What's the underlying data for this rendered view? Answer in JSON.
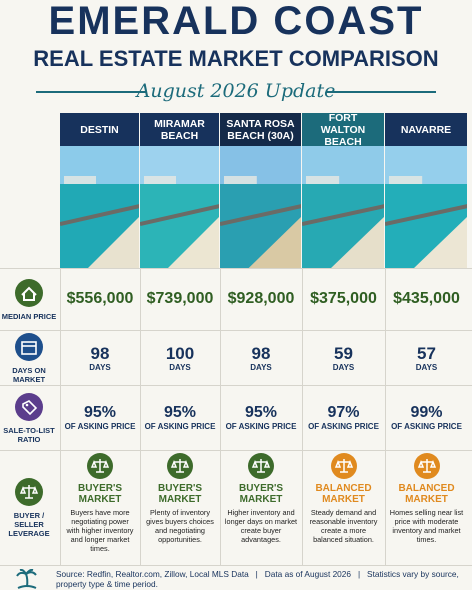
{
  "header": {
    "title": "EMERALD COAST",
    "subtitle": "REAL ESTATE MARKET COMPARISON",
    "update": "August 2026 Update"
  },
  "row_labels": [
    "MEDIAN PRICE",
    "DAYS ON MARKET",
    "SALE-TO-LIST RATIO",
    "BUYER / SELLER LEVERAGE"
  ],
  "columns": [
    {
      "name": "DESTIN",
      "header_color": "#17325c",
      "price": "$556,000",
      "days": "98",
      "days_unit": "DAYS",
      "ratio": "95%",
      "ratio_unit": "OF ASKING PRICE",
      "leverage": [
        "BUYER'S",
        "MARKET"
      ],
      "leverage_color": "#3d6b2b",
      "description": "Buyers have more negotiating power with higher inventory and longer market times."
    },
    {
      "name": "MIRAMAR BEACH",
      "header_color": "#17325c",
      "price": "$739,000",
      "days": "100",
      "days_unit": "DAYS",
      "ratio": "95%",
      "ratio_unit": "OF ASKING PRICE",
      "leverage": [
        "BUYER'S",
        "MARKET"
      ],
      "leverage_color": "#3d6b2b",
      "description": "Plenty of inventory gives buyers choices and negotiating opportunities."
    },
    {
      "name": "SANTA ROSA BEACH (30A)",
      "header_color": "#142a49",
      "price": "$928,000",
      "days": "98",
      "days_unit": "DAYS",
      "ratio": "95%",
      "ratio_unit": "OF ASKING PRICE",
      "leverage": [
        "BUYER'S",
        "MARKET"
      ],
      "leverage_color": "#3d6b2b",
      "description": "Higher inventory and longer days on market create buyer advantages."
    },
    {
      "name": "FORT WALTON BEACH",
      "header_color": "#1c6b7b",
      "price": "$375,000",
      "days": "59",
      "days_unit": "DAYS",
      "ratio": "97%",
      "ratio_unit": "OF ASKING PRICE",
      "leverage": [
        "BALANCED",
        "MARKET"
      ],
      "leverage_color": "#e08a1f",
      "description": "Steady demand and reasonable inventory create a more balanced situation."
    },
    {
      "name": "NAVARRE",
      "header_color": "#17325c",
      "price": "$435,000",
      "days": "57",
      "days_unit": "DAYS",
      "ratio": "99%",
      "ratio_unit": "OF ASKING PRICE",
      "leverage": [
        "BALANCED",
        "MARKET"
      ],
      "leverage_color": "#e08a1f",
      "description": "Homes selling near list price with moderate inventory and market times."
    }
  ],
  "footer": {
    "source": "Source: Redfin, Realtor.com, Zillow, Local MLS Data",
    "date": "Data as of August 2026",
    "note": "Statistics vary by source, property type & time period."
  }
}
